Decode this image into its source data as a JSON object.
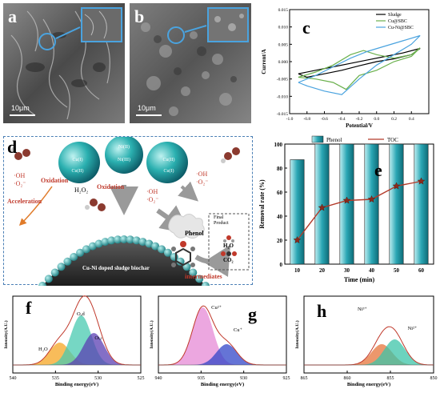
{
  "panels": {
    "a": {
      "label": "a",
      "scale": "10μm"
    },
    "b": {
      "label": "b",
      "scale": "10μm"
    },
    "c": {
      "label": "c"
    },
    "d": {
      "label": "d"
    },
    "e": {
      "label": "e"
    },
    "f": {
      "label": "f"
    },
    "g": {
      "label": "g"
    },
    "h": {
      "label": "h"
    }
  },
  "diagram_d": {
    "ions": [
      "Ni(II)",
      "Cu(I)",
      "Cu(II)",
      "Ni(III)",
      "Cu(II)",
      "Cu(I)"
    ],
    "radicals_left": "·OH\n·O₂⁻",
    "oxidation_left": "Oxidation",
    "acceleration": "Acceleration",
    "h2o2": "H₂O₂",
    "oxidation_center": "Oxidation",
    "radicals_center": "·OH\n·O₂⁻",
    "radicals_right": "·OH\n·O₂⁻",
    "phenol": "Phenol",
    "final_product": "Final\nProduct",
    "h2o": "H₂O",
    "co2": "CO₂",
    "biochar": "Cu-Ni doped sludge biochar",
    "intermediates": "intermediates"
  },
  "chart_data": [
    {
      "panel": "c",
      "type": "line",
      "xlabel": "Potential/V",
      "ylabel": "Current/A",
      "xlim": [
        -1.0,
        0.6
      ],
      "ylim": [
        -0.015,
        0.015
      ],
      "xticks": [
        "-1.0",
        "-0.8",
        "-0.6",
        "-0.4",
        "-0.2",
        "0.0",
        "0.2",
        "0.4"
      ],
      "yticks": [
        "-0.015",
        "-0.010",
        "-0.005",
        "0.000",
        "0.005",
        "0.010",
        "0.015"
      ],
      "legend_position": "top-right",
      "series": [
        {
          "name": "Sludge",
          "color": "#000000",
          "x": [
            -0.9,
            -0.7,
            -0.5,
            -0.3,
            -0.1,
            0.1,
            0.3,
            0.5,
            0.4,
            0.2,
            0.0,
            -0.2,
            -0.4,
            -0.6,
            -0.8,
            -0.9
          ],
          "y": [
            -0.0035,
            -0.0025,
            -0.0015,
            -0.0005,
            0.0005,
            0.0015,
            0.0025,
            0.0038,
            0.002,
            0.0008,
            0.0,
            -0.0012,
            -0.0025,
            -0.0035,
            -0.0045,
            -0.0035
          ]
        },
        {
          "name": "Cu@SBC",
          "color": "#6ab04c",
          "x": [
            -0.9,
            -0.7,
            -0.5,
            -0.3,
            -0.15,
            0.0,
            0.2,
            0.4,
            0.5,
            0.4,
            0.2,
            0.0,
            -0.2,
            -0.35,
            -0.5,
            -0.7,
            -0.9
          ],
          "y": [
            -0.0045,
            -0.003,
            -0.001,
            0.002,
            0.0032,
            0.002,
            0.001,
            0.002,
            0.004,
            0.0015,
            0.0,
            -0.0025,
            -0.004,
            -0.008,
            -0.006,
            -0.005,
            -0.0045
          ]
        },
        {
          "name": "Cu-Ni@SBC",
          "color": "#4aa3df",
          "x": [
            -0.9,
            -0.7,
            -0.5,
            -0.3,
            -0.1,
            0.1,
            0.3,
            0.5,
            0.4,
            0.2,
            0.0,
            -0.2,
            -0.4,
            -0.6,
            -0.8,
            -0.9
          ],
          "y": [
            -0.006,
            -0.004,
            -0.0015,
            0.001,
            0.003,
            0.0045,
            0.006,
            0.0075,
            0.005,
            0.002,
            -0.001,
            -0.005,
            -0.0095,
            -0.0085,
            -0.007,
            -0.006
          ]
        }
      ]
    },
    {
      "panel": "e",
      "type": "bar",
      "xlabel": "Time (min)",
      "ylabel": "Removal rate (%)",
      "ylim": [
        0,
        100
      ],
      "yticks": [
        "0",
        "20",
        "40",
        "60",
        "80",
        "100"
      ],
      "categories": [
        "10",
        "20",
        "30",
        "40",
        "50",
        "60"
      ],
      "legend_position": "top",
      "series": [
        {
          "name": "Phenol",
          "type": "bar",
          "color": "#2aa6b4",
          "values": [
            87,
            100,
            100,
            100,
            100,
            100
          ]
        },
        {
          "name": "TOC",
          "type": "line",
          "color": "#b33a2a",
          "values": [
            20,
            47,
            53,
            54,
            65,
            69
          ]
        }
      ]
    },
    {
      "panel": "f",
      "type": "line",
      "xlabel": "Binding energy(eV)",
      "ylabel": "Intensity(A.U.)",
      "xlim": [
        540,
        525
      ],
      "xticks": [
        "540",
        "535",
        "530",
        "525"
      ],
      "peak_labels": [
        "Oₐd",
        "Oₗₐₜ",
        "H₂O"
      ],
      "peaks": [
        {
          "label": "H₂O",
          "center": 534.5,
          "color": "#f5a623"
        },
        {
          "label": "Oₐd",
          "center": 532.0,
          "color": "#48c9b0"
        },
        {
          "label": "Oₗₐₜ",
          "center": 530.5,
          "color": "#5b3fb3"
        }
      ]
    },
    {
      "panel": "g",
      "type": "line",
      "xlabel": "Binding energy(eV)",
      "ylabel": "Intensity(A.U.)",
      "xlim": [
        940,
        925
      ],
      "xticks": [
        "940",
        "935",
        "930",
        "925"
      ],
      "peak_labels": [
        "Cu²⁺",
        "Cu⁺"
      ],
      "peaks": [
        {
          "label": "Cu²⁺",
          "center": 934.8,
          "color": "#e68ad6"
        },
        {
          "label": "Cu⁺",
          "center": 932.0,
          "color": "#3246c8"
        }
      ]
    },
    {
      "panel": "h",
      "type": "line",
      "xlabel": "Binding energy(eV)",
      "ylabel": "Intensity(A.U.)",
      "xlim": [
        865,
        850
      ],
      "xticks": [
        "865",
        "860",
        "855",
        "850"
      ],
      "peak_labels": [
        "Ni³⁺",
        "Ni²⁺"
      ],
      "peaks": [
        {
          "label": "Ni³⁺",
          "center": 856.0,
          "color": "#e6743b"
        },
        {
          "label": "Ni²⁺",
          "center": 854.5,
          "color": "#3cc4a8"
        }
      ]
    }
  ]
}
